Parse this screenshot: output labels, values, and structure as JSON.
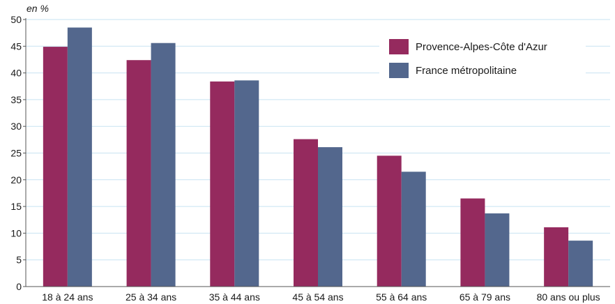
{
  "chart_data": {
    "type": "bar",
    "unit_label": "en %",
    "categories": [
      "18 à 24 ans",
      "25 à 34 ans",
      "35 à 44 ans",
      "45 à 54 ans",
      "55 à 64 ans",
      "65 à 79 ans",
      "80 ans ou plus"
    ],
    "series": [
      {
        "name": "Provence-Alpes-Côte d'Azur",
        "color": "#952a5e",
        "values": [
          44.9,
          42.4,
          38.4,
          27.6,
          24.5,
          16.5,
          11.1
        ]
      },
      {
        "name": "France métropolitaine",
        "color": "#53678d",
        "values": [
          48.5,
          45.6,
          38.6,
          26.1,
          21.5,
          13.7,
          8.6
        ]
      }
    ],
    "ylim": [
      0,
      50
    ],
    "yticks": [
      0,
      5,
      10,
      15,
      20,
      25,
      30,
      35,
      40,
      45,
      50
    ],
    "grid": true,
    "grid_color": "#c7e3f2",
    "legend_position": "top-right"
  }
}
